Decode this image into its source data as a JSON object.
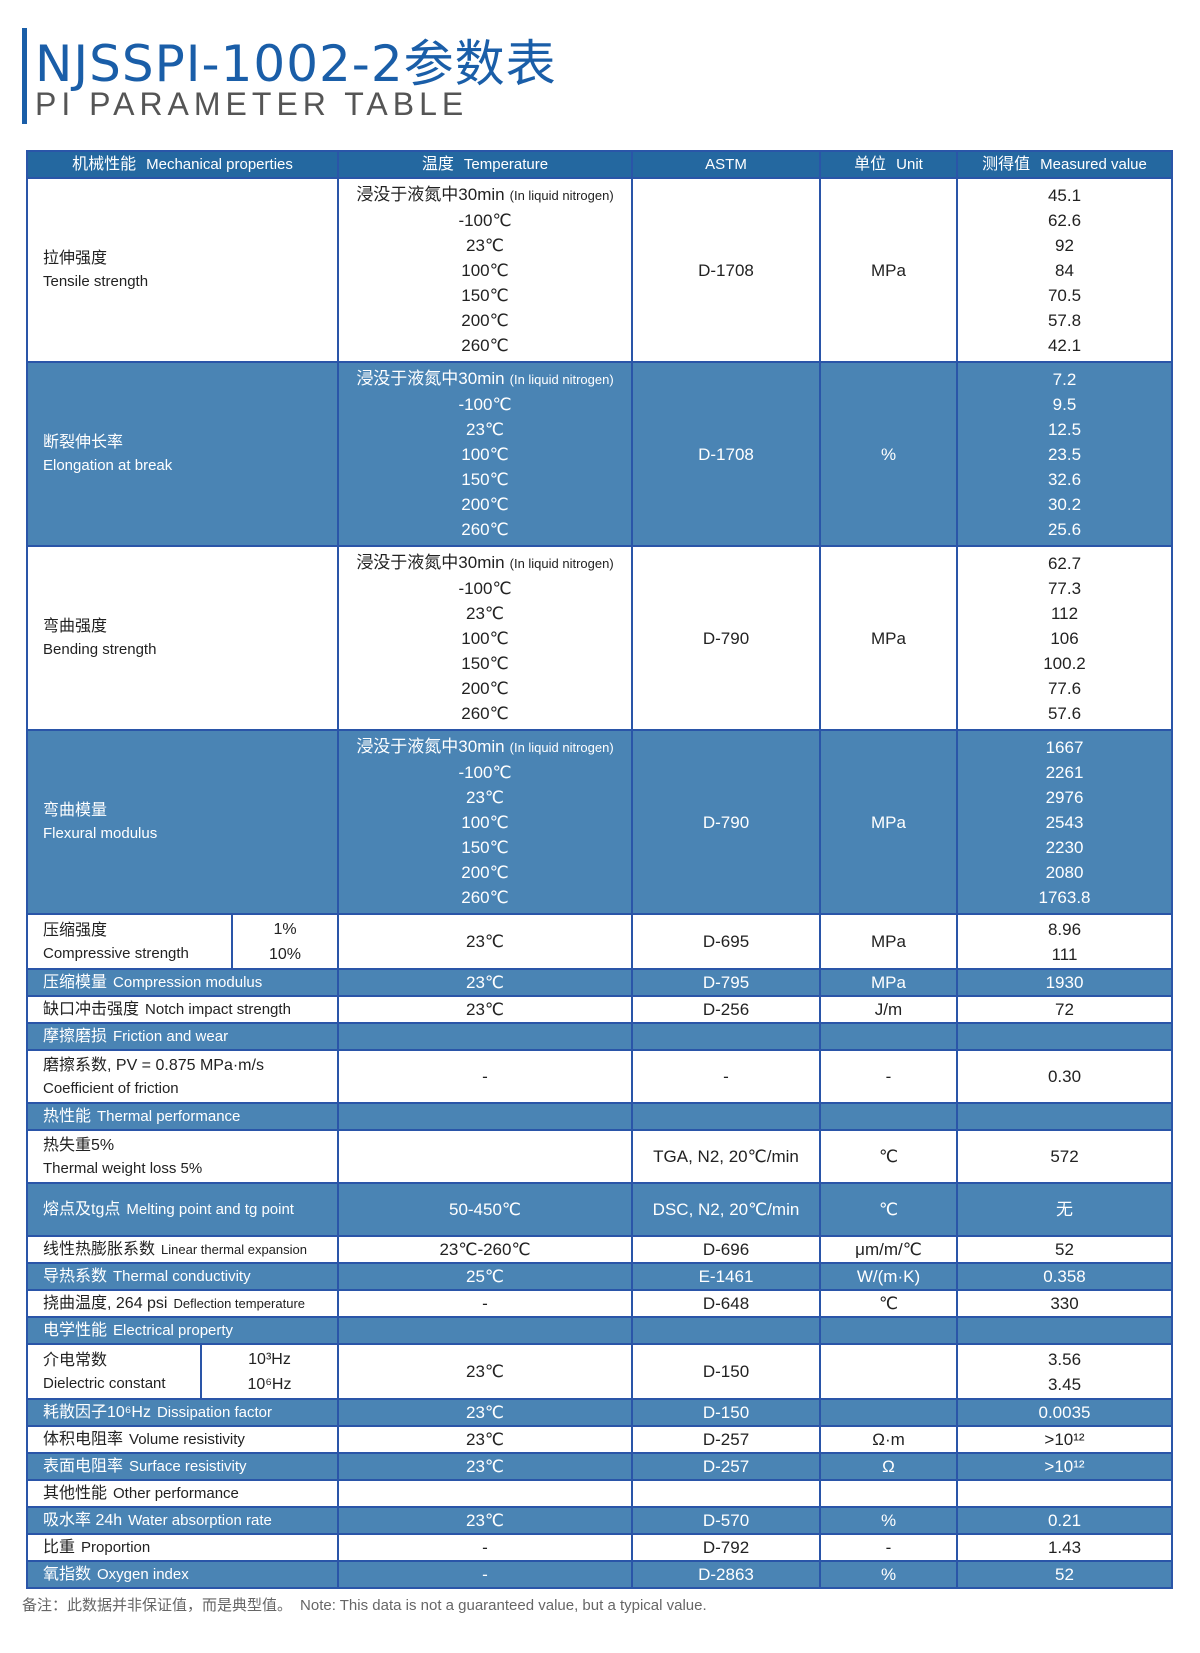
{
  "title": "NJSSPI-1002-2参数表",
  "subtitle": "PI PARAMETER TABLE",
  "colors": {
    "title": "#1a5ea8",
    "header": "#2468a0",
    "stripe": "#4a84b4",
    "border": "#2a55a8"
  },
  "header": [
    {
      "zh": "机械性能",
      "en": "Mechanical properties"
    },
    {
      "zh": "温度",
      "en": "Temperature"
    },
    {
      "zh": "",
      "en": "ASTM"
    },
    {
      "zh": "单位",
      "en": "Unit"
    },
    {
      "zh": "测得值",
      "en": "Measured value"
    }
  ],
  "temps_prefix": "浸没于液氮中30min",
  "temps_note": "(In liquid nitrogen)",
  "rows": [
    {
      "kind": "multi",
      "stripe": false,
      "zh": "拉伸强度",
      "en": "Tensile strength",
      "temps": [
        "-100℃",
        "23℃",
        "100℃",
        "150℃",
        "200℃",
        "260℃"
      ],
      "astm": "D-1708",
      "unit": "MPa",
      "values": [
        "45.1",
        "62.6",
        "92",
        "84",
        "70.5",
        "57.8",
        "42.1"
      ]
    },
    {
      "kind": "multi",
      "stripe": true,
      "zh": "断裂伸长率",
      "en": "Elongation at break",
      "temps": [
        "-100℃",
        "23℃",
        "100℃",
        "150℃",
        "200℃",
        "260℃"
      ],
      "astm": "D-1708",
      "unit": "%",
      "values": [
        "7.2",
        "9.5",
        "12.5",
        "23.5",
        "32.6",
        "30.2",
        "25.6"
      ]
    },
    {
      "kind": "multi",
      "stripe": false,
      "zh": "弯曲强度",
      "en": "Bending strength",
      "temps": [
        "-100℃",
        "23℃",
        "100℃",
        "150℃",
        "200℃",
        "260℃"
      ],
      "astm": "D-790",
      "unit": "MPa",
      "values": [
        "62.7",
        "77.3",
        "112",
        "106",
        "100.2",
        "77.6",
        "57.6"
      ]
    },
    {
      "kind": "multi",
      "stripe": true,
      "zh": "弯曲模量",
      "en": "Flexural modulus",
      "temps": [
        "-100℃",
        "23℃",
        "100℃",
        "150℃",
        "200℃",
        "260℃"
      ],
      "astm": "D-790",
      "unit": "MPa",
      "values": [
        "1667",
        "2261",
        "2976",
        "2543",
        "2230",
        "2080",
        "1763.8"
      ]
    },
    {
      "kind": "sub",
      "stripe": false,
      "zh": "压缩强度",
      "en": "Compressive strength",
      "subs": [
        "1%",
        "10%"
      ],
      "temp": "23℃",
      "astm": "D-695",
      "unit": "MPa",
      "values": [
        "8.96",
        "111"
      ]
    },
    {
      "kind": "single",
      "stripe": true,
      "zh": "压缩模量",
      "en": "Compression modulus",
      "temp": "23℃",
      "astm": "D-795",
      "unit": "MPa",
      "value": "1930"
    },
    {
      "kind": "single",
      "stripe": false,
      "zh": "缺口冲击强度",
      "en": "Notch impact strength",
      "temp": "23℃",
      "astm": "D-256",
      "unit": "J/m",
      "value": "72"
    },
    {
      "kind": "single",
      "stripe": true,
      "zh": "摩擦磨损",
      "en": "Friction and wear",
      "temp": "",
      "astm": "",
      "unit": "",
      "value": ""
    },
    {
      "kind": "two",
      "stripe": false,
      "zh": "磨擦系数, PV = 0.875 MPa·m/s",
      "en": "Coefficient of friction",
      "temp": "-",
      "astm": "-",
      "unit": "-",
      "value": "0.30"
    },
    {
      "kind": "single",
      "stripe": true,
      "zh": "热性能",
      "en": "Thermal performance",
      "temp": "",
      "astm": "",
      "unit": "",
      "value": ""
    },
    {
      "kind": "two",
      "stripe": false,
      "zh": "热失重5%",
      "en": "Thermal weight loss 5%",
      "temp": "",
      "astm": "TGA, N2, 20℃/min",
      "unit": "℃",
      "value": "572"
    },
    {
      "kind": "tall",
      "stripe": true,
      "zh": "熔点及tg点",
      "en": "Melting point and tg point",
      "temp": "50-450℃",
      "astm": "DSC, N2, 20℃/min",
      "unit": "℃",
      "value": "无"
    },
    {
      "kind": "single",
      "stripe": false,
      "small": true,
      "zh": "线性热膨胀系数",
      "en": "Linear thermal expansion",
      "temp": "23℃-260℃",
      "astm": "D-696",
      "unit": "μm/m/℃",
      "value": "52"
    },
    {
      "kind": "single",
      "stripe": true,
      "zh": "导热系数",
      "en": "Thermal conductivity",
      "temp": "25℃",
      "astm": "E-1461",
      "unit": "W/(m·K)",
      "value": "0.358"
    },
    {
      "kind": "single",
      "stripe": false,
      "small": true,
      "zh": "挠曲温度, 264 psi",
      "en": "Deflection temperature",
      "temp": "-",
      "astm": "D-648",
      "unit": "℃",
      "value": "330"
    },
    {
      "kind": "single",
      "stripe": true,
      "zh": "电学性能",
      "en": "Electrical property",
      "temp": "",
      "astm": "",
      "unit": "",
      "value": ""
    },
    {
      "kind": "sub",
      "stripe": false,
      "zh": "介电常数",
      "en": "Dielectric constant",
      "subs": [
        "10³Hz",
        "10⁶Hz"
      ],
      "temp": "23℃",
      "astm": "D-150",
      "unit": "",
      "values": [
        "3.56",
        "3.45"
      ]
    },
    {
      "kind": "single",
      "stripe": true,
      "zh": "耗散因子10⁶Hz",
      "en": "Dissipation factor",
      "temp": "23℃",
      "astm": "D-150",
      "unit": "",
      "value": "0.0035"
    },
    {
      "kind": "single",
      "stripe": false,
      "zh": "体积电阻率",
      "en": "Volume resistivity",
      "temp": "23℃",
      "astm": "D-257",
      "unit": "Ω·m",
      "value": ">10¹²"
    },
    {
      "kind": "single",
      "stripe": true,
      "zh": "表面电阻率",
      "en": "Surface resistivity",
      "temp": "23℃",
      "astm": "D-257",
      "unit": "Ω",
      "value": ">10¹²"
    },
    {
      "kind": "single",
      "stripe": false,
      "zh": "其他性能",
      "en": "Other performance",
      "temp": "",
      "astm": "",
      "unit": "",
      "value": ""
    },
    {
      "kind": "single",
      "stripe": true,
      "zh": "吸水率 24h",
      "en": "Water absorption rate",
      "temp": "23℃",
      "astm": "D-570",
      "unit": "%",
      "value": "0.21"
    },
    {
      "kind": "single",
      "stripe": false,
      "zh": "比重",
      "en": "Proportion",
      "temp": "-",
      "astm": "D-792",
      "unit": "-",
      "value": "1.43"
    },
    {
      "kind": "single",
      "stripe": true,
      "zh": "氧指数",
      "en": "Oxygen index",
      "temp": "-",
      "astm": "D-2863",
      "unit": "%",
      "value": "52"
    }
  ],
  "note": {
    "zh": "备注：此数据并非保证值，而是典型值。",
    "en": "Note: This data is not a guaranteed value, but a typical value."
  }
}
